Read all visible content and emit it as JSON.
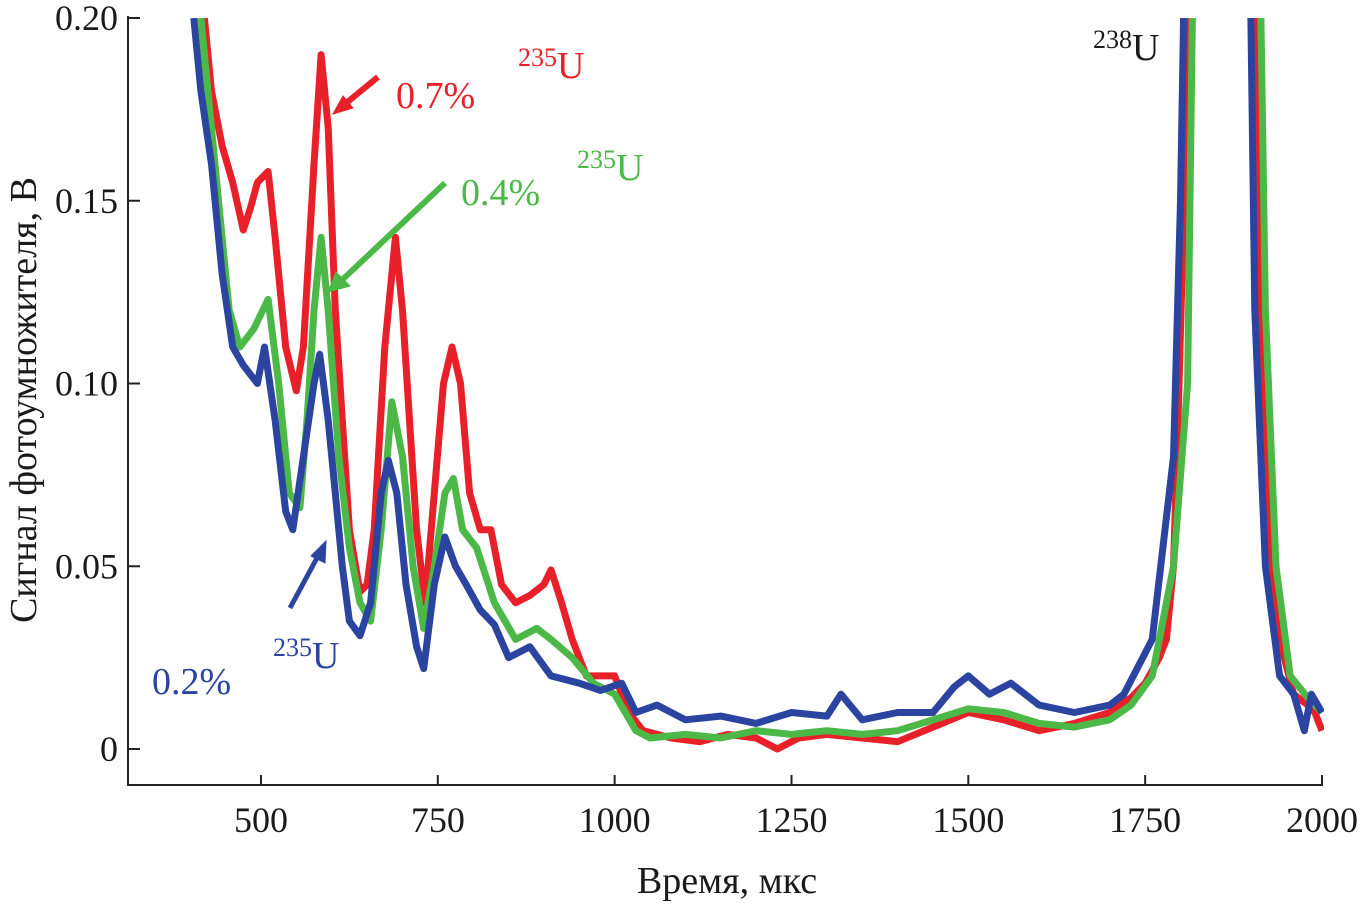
{
  "chart_data": {
    "type": "line",
    "title": "",
    "xlabel": "Время, мкс",
    "ylabel": "Сигнал фотоумножителя, В",
    "xlim": [
      312,
      2000
    ],
    "ylim": [
      -0.01,
      0.2
    ],
    "xticks": [
      500,
      750,
      1000,
      1250,
      1500,
      1750,
      2000
    ],
    "xtick_labels": [
      "500",
      "750",
      "1000",
      "1250",
      "1500",
      "1750",
      "2000"
    ],
    "yticks": [
      0,
      0.05,
      0.1,
      0.15,
      0.2
    ],
    "ytick_labels": [
      "0",
      "0.05",
      "0.10",
      "0.15",
      "0.20"
    ],
    "grid": false,
    "series": [
      {
        "name": "0.7%",
        "color": "#e8202a",
        "x": [
          420,
          430,
          445,
          460,
          475,
          485,
          495,
          510,
          520,
          535,
          550,
          560,
          575,
          585,
          595,
          605,
          615,
          625,
          640,
          650,
          660,
          675,
          690,
          700,
          710,
          720,
          732,
          745,
          758,
          770,
          782,
          795,
          810,
          825,
          840,
          860,
          880,
          900,
          910,
          925,
          940,
          960,
          980,
          1000,
          1020,
          1040,
          1080,
          1120,
          1160,
          1200,
          1230,
          1260,
          1300,
          1350,
          1400,
          1450,
          1500,
          1550,
          1600,
          1650,
          1700,
          1730,
          1750,
          1770,
          1780,
          1790,
          1795,
          1805,
          1812,
          1905,
          1912,
          1925,
          1940,
          1960,
          1980,
          1990,
          2000
        ],
        "y": [
          0.2,
          0.18,
          0.165,
          0.155,
          0.142,
          0.148,
          0.155,
          0.158,
          0.14,
          0.11,
          0.098,
          0.11,
          0.16,
          0.19,
          0.17,
          0.12,
          0.09,
          0.06,
          0.043,
          0.045,
          0.06,
          0.11,
          0.14,
          0.12,
          0.09,
          0.06,
          0.04,
          0.07,
          0.1,
          0.11,
          0.1,
          0.07,
          0.06,
          0.06,
          0.045,
          0.04,
          0.042,
          0.045,
          0.049,
          0.04,
          0.03,
          0.02,
          0.02,
          0.02,
          0.01,
          0.005,
          0.003,
          0.002,
          0.004,
          0.003,
          0.0,
          0.003,
          0.004,
          0.003,
          0.002,
          0.006,
          0.01,
          0.008,
          0.005,
          0.007,
          0.01,
          0.014,
          0.018,
          0.025,
          0.03,
          0.05,
          0.08,
          0.15,
          0.22,
          0.22,
          0.12,
          0.06,
          0.03,
          0.015,
          0.012,
          0.01,
          0.005
        ]
      },
      {
        "name": "0.4%",
        "color": "#4cb848",
        "x": [
          415,
          425,
          440,
          455,
          470,
          490,
          510,
          525,
          540,
          555,
          565,
          575,
          585,
          595,
          610,
          625,
          640,
          655,
          670,
          685,
          700,
          715,
          730,
          745,
          760,
          772,
          785,
          805,
          830,
          860,
          890,
          910,
          940,
          970,
          1000,
          1030,
          1050,
          1100,
          1150,
          1200,
          1250,
          1300,
          1350,
          1400,
          1450,
          1500,
          1550,
          1600,
          1650,
          1700,
          1730,
          1760,
          1790,
          1810,
          1818,
          1912,
          1920,
          1935,
          1955,
          1980,
          2000
        ],
        "y": [
          0.2,
          0.18,
          0.15,
          0.12,
          0.11,
          0.115,
          0.123,
          0.1,
          0.07,
          0.066,
          0.09,
          0.12,
          0.14,
          0.12,
          0.08,
          0.055,
          0.04,
          0.035,
          0.06,
          0.095,
          0.08,
          0.05,
          0.033,
          0.05,
          0.07,
          0.074,
          0.06,
          0.055,
          0.04,
          0.03,
          0.033,
          0.03,
          0.025,
          0.018,
          0.015,
          0.005,
          0.003,
          0.004,
          0.003,
          0.005,
          0.004,
          0.005,
          0.004,
          0.005,
          0.008,
          0.011,
          0.01,
          0.007,
          0.006,
          0.008,
          0.012,
          0.02,
          0.05,
          0.1,
          0.22,
          0.22,
          0.12,
          0.05,
          0.02,
          0.014,
          0.01
        ]
      },
      {
        "name": "0.2%",
        "color": "#2b44a0",
        "x": [
          405,
          415,
          430,
          445,
          460,
          475,
          495,
          505,
          520,
          535,
          545,
          560,
          575,
          583,
          595,
          605,
          615,
          625,
          640,
          655,
          670,
          680,
          692,
          705,
          720,
          730,
          745,
          760,
          775,
          790,
          810,
          830,
          850,
          880,
          910,
          950,
          980,
          1010,
          1030,
          1060,
          1100,
          1150,
          1200,
          1250,
          1300,
          1320,
          1350,
          1400,
          1450,
          1480,
          1500,
          1530,
          1560,
          1600,
          1650,
          1700,
          1720,
          1760,
          1790,
          1800,
          1806,
          1898,
          1905,
          1920,
          1940,
          1960,
          1975,
          1985,
          2000
        ],
        "y": [
          0.2,
          0.18,
          0.16,
          0.13,
          0.11,
          0.105,
          0.1,
          0.11,
          0.09,
          0.065,
          0.06,
          0.08,
          0.1,
          0.108,
          0.09,
          0.07,
          0.05,
          0.035,
          0.031,
          0.04,
          0.07,
          0.079,
          0.07,
          0.045,
          0.028,
          0.022,
          0.045,
          0.058,
          0.05,
          0.045,
          0.038,
          0.034,
          0.025,
          0.028,
          0.02,
          0.018,
          0.016,
          0.018,
          0.01,
          0.012,
          0.008,
          0.009,
          0.007,
          0.01,
          0.009,
          0.015,
          0.008,
          0.01,
          0.01,
          0.017,
          0.02,
          0.015,
          0.018,
          0.012,
          0.01,
          0.012,
          0.015,
          0.03,
          0.08,
          0.15,
          0.22,
          0.22,
          0.12,
          0.05,
          0.02,
          0.015,
          0.005,
          0.015,
          0.01
        ]
      }
    ],
    "annotations": {
      "red_pct": "0.7%",
      "red_iso_mass": "235",
      "red_iso_sym": "U",
      "green_pct": "0.4%",
      "green_iso_mass": "235",
      "green_iso_sym": "U",
      "blue_pct": "0.2%",
      "blue_iso_mass": "235",
      "blue_iso_sym": "U",
      "u238_mass": "238",
      "u238_sym": "U"
    }
  }
}
